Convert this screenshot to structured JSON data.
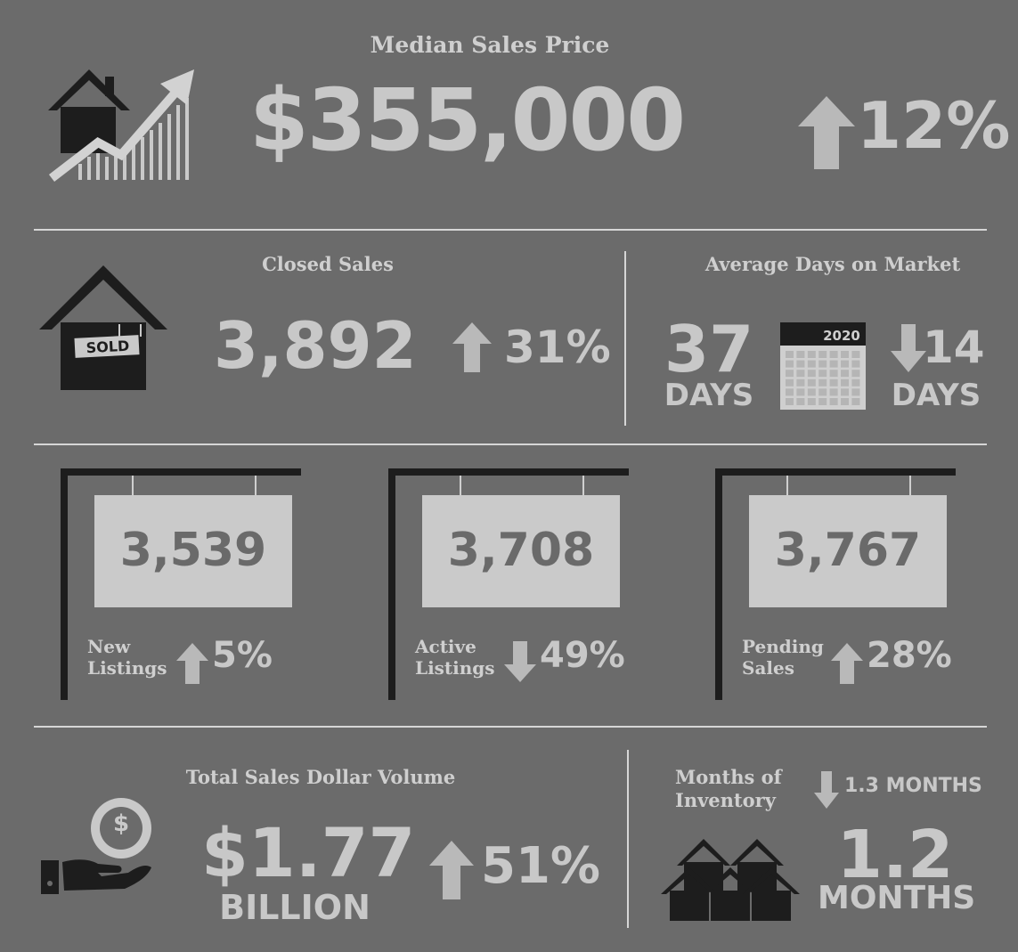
{
  "median": {
    "title": "Median Sales Price",
    "value": "$355,000",
    "change": "12%",
    "direction": "up"
  },
  "closed": {
    "title": "Closed Sales",
    "value": "3,892",
    "change": "31%",
    "direction": "up",
    "sign_text": "SOLD"
  },
  "days": {
    "title": "Average Days on Market",
    "value": "37",
    "unit": "DAYS",
    "calendar_year": "2020",
    "change": "14",
    "change_unit": "DAYS",
    "direction": "down"
  },
  "listings": [
    {
      "value": "3,539",
      "label_line1": "New",
      "label_line2": "Listings",
      "direction": "up",
      "change": "5%"
    },
    {
      "value": "3,708",
      "label_line1": "Active",
      "label_line2": "Listings",
      "direction": "down",
      "change": "49%"
    },
    {
      "value": "3,767",
      "label_line1": "Pending",
      "label_line2": "Sales",
      "direction": "up",
      "change": "28%"
    }
  ],
  "volume": {
    "title": "Total Sales Dollar Volume",
    "value": "$1.77",
    "unit": "BILLION",
    "change": "51%",
    "direction": "up",
    "coin_symbol": "$"
  },
  "inventory": {
    "title_line1": "Months of",
    "title_line2": "Inventory",
    "change": "1.3 MONTHS",
    "direction": "down",
    "value": "1.2",
    "unit": "MONTHS"
  },
  "colors": {
    "background": "#6b6b6b",
    "text": "#c9c9c9",
    "dark": "#1d1d1d",
    "arrow": "#b9b9b9"
  }
}
